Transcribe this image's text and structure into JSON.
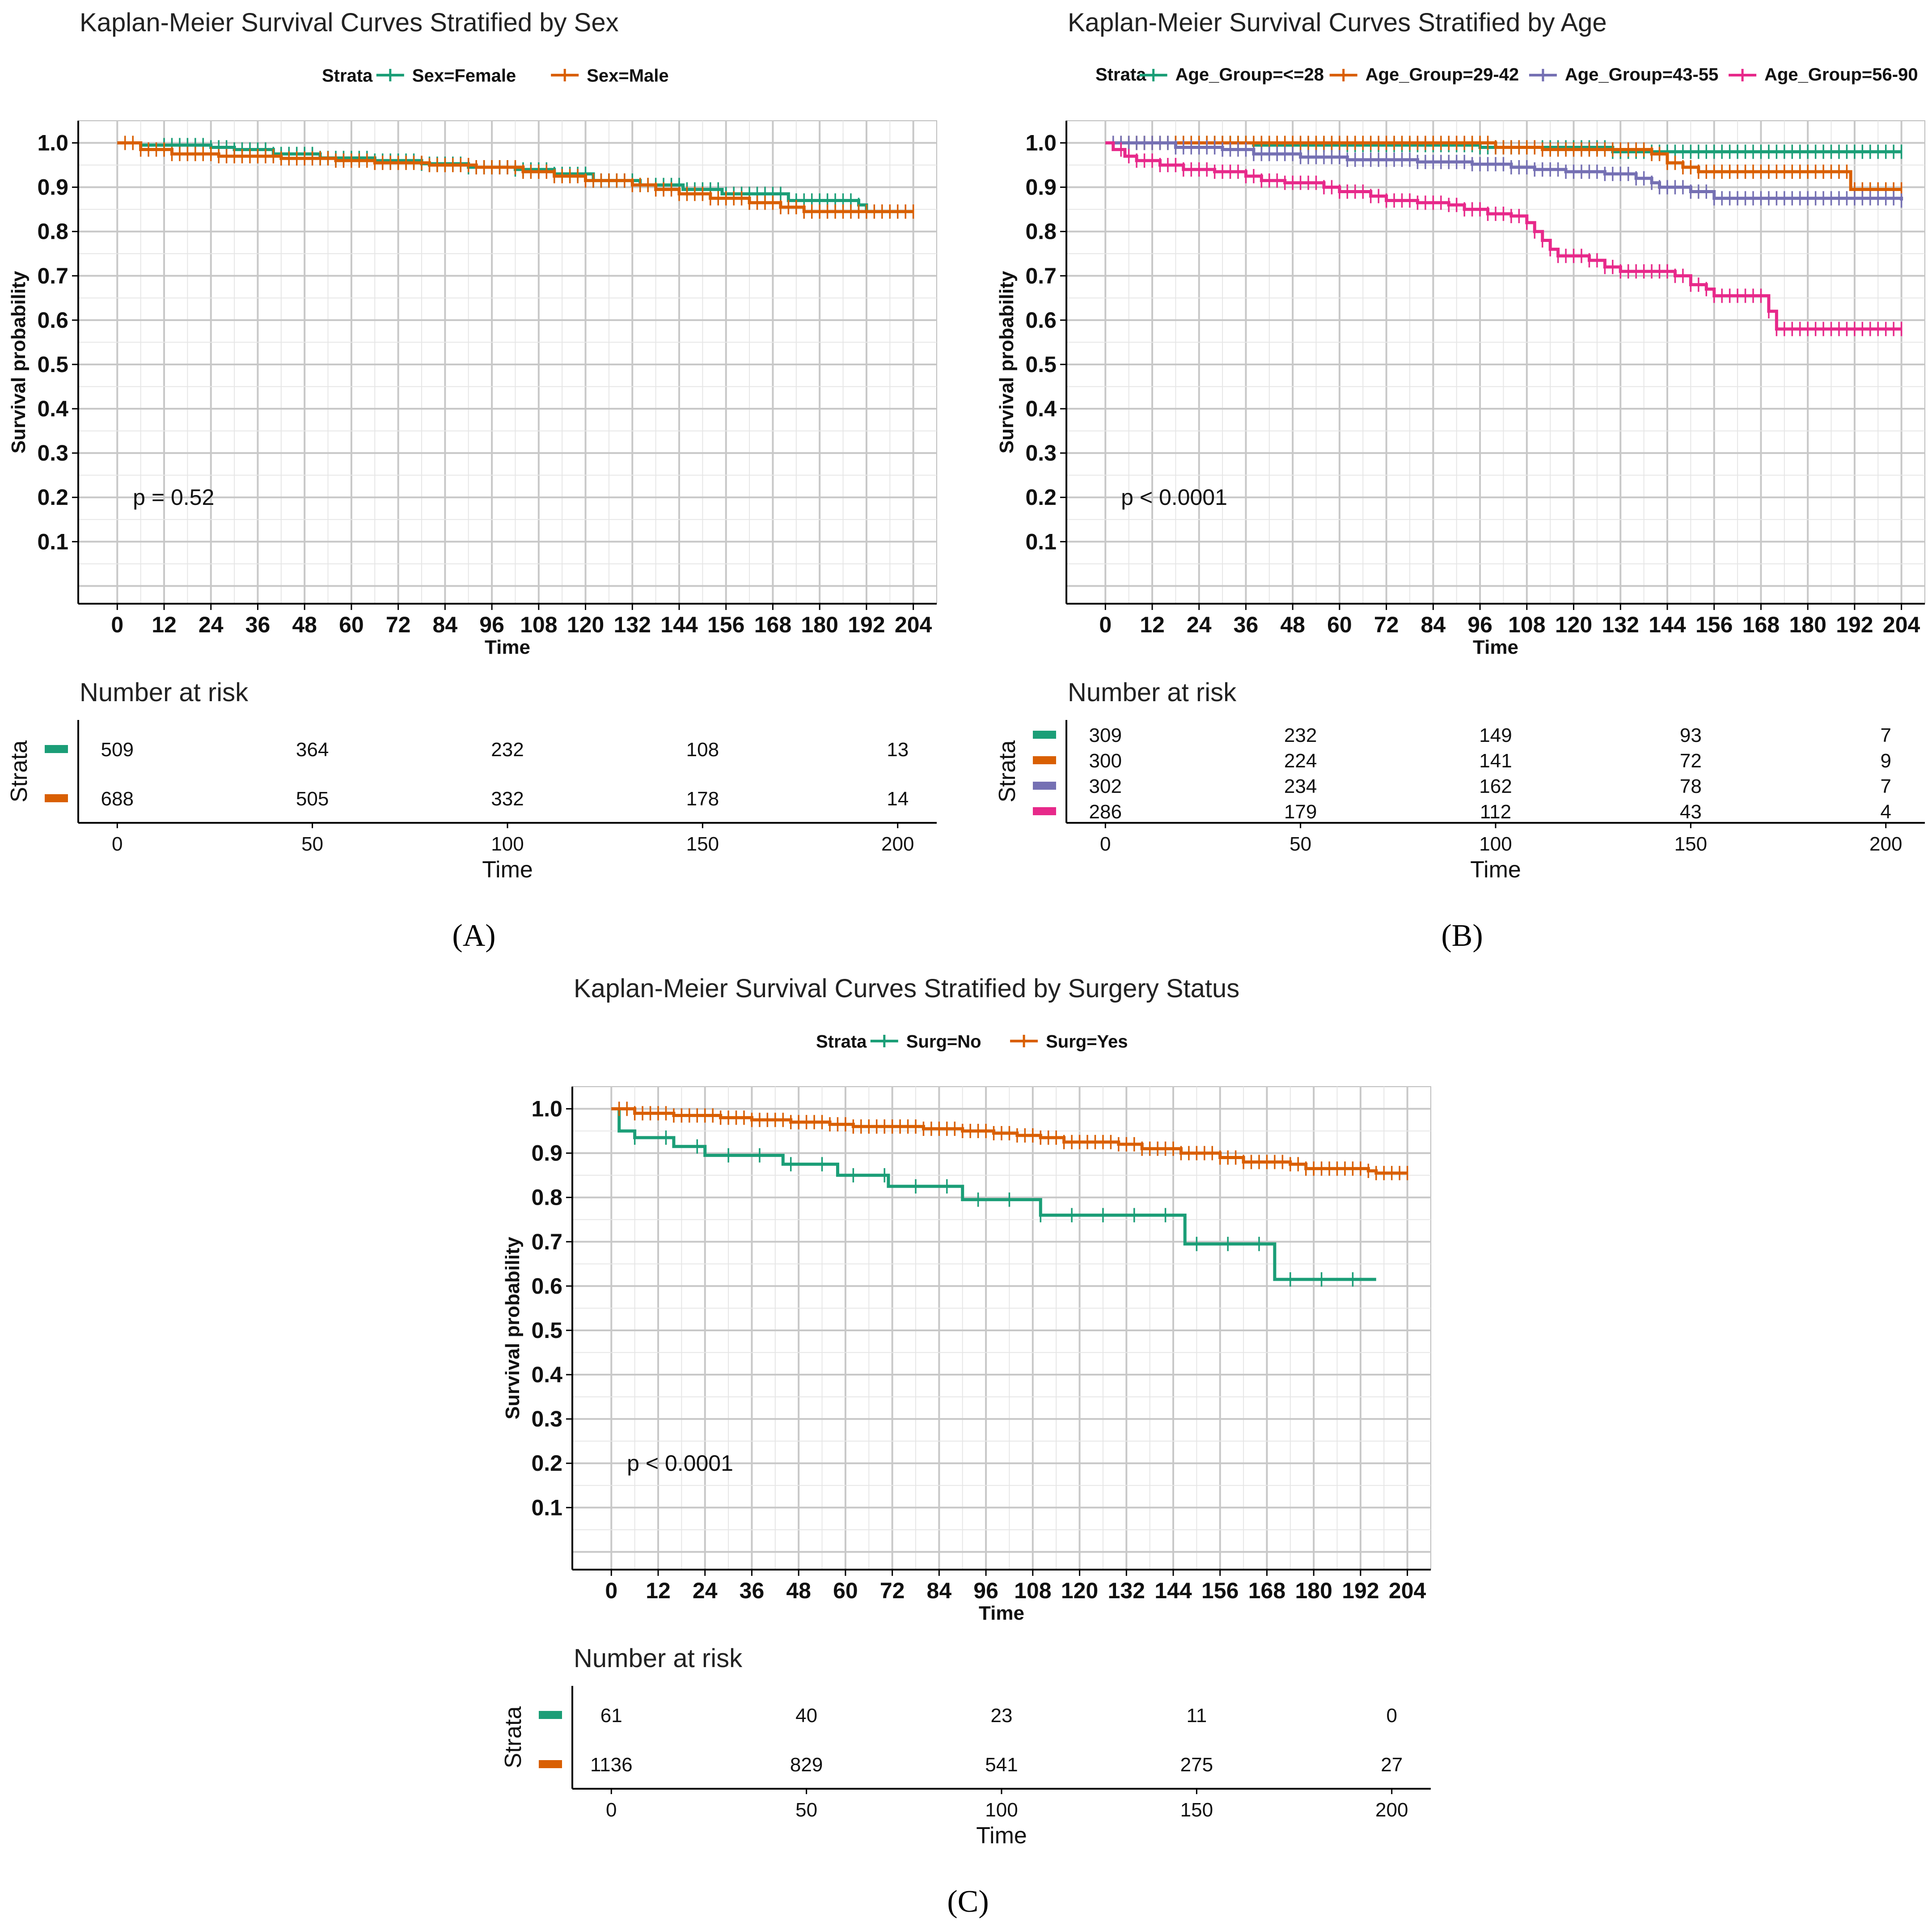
{
  "chart_data": [
    {
      "id": "A",
      "type": "line",
      "title": "Kaplan-Meier Survival Curves Stratified by Sex",
      "panel_label": "(A)",
      "legend_title": "Strata",
      "xlabel": "Time",
      "ylabel": "Survival probability",
      "xticks": [
        0,
        12,
        24,
        36,
        48,
        60,
        72,
        84,
        96,
        108,
        120,
        132,
        144,
        156,
        168,
        180,
        192,
        204
      ],
      "yticks": [
        "0.1",
        "0.2",
        "0.3",
        "0.4",
        "0.5",
        "0.6",
        "0.7",
        "0.8",
        "0.9",
        "1.0"
      ],
      "xlim": [
        -10,
        210
      ],
      "ylim": [
        -0.04,
        1.05
      ],
      "pvalue": "p = 0.52",
      "series": [
        {
          "name": "Sex=Female",
          "color": "#1b9e77",
          "points": [
            [
              0,
              1.0
            ],
            [
              6,
              0.995
            ],
            [
              24,
              0.99
            ],
            [
              30,
              0.985
            ],
            [
              40,
              0.975
            ],
            [
              52,
              0.966
            ],
            [
              66,
              0.96
            ],
            [
              78,
              0.953
            ],
            [
              90,
              0.945
            ],
            [
              102,
              0.94
            ],
            [
              112,
              0.93
            ],
            [
              122,
              0.915
            ],
            [
              134,
              0.905
            ],
            [
              145,
              0.895
            ],
            [
              155,
              0.885
            ],
            [
              172,
              0.87
            ],
            [
              190,
              0.86
            ],
            [
              192,
              0.845
            ],
            [
              204,
              0.845
            ]
          ],
          "censor_from": 12,
          "censor_to": 192
        },
        {
          "name": "Sex=Male",
          "color": "#d95f02",
          "points": [
            [
              0,
              1.0
            ],
            [
              6,
              0.985
            ],
            [
              14,
              0.975
            ],
            [
              26,
              0.97
            ],
            [
              42,
              0.965
            ],
            [
              56,
              0.96
            ],
            [
              66,
              0.955
            ],
            [
              80,
              0.95
            ],
            [
              92,
              0.945
            ],
            [
              104,
              0.935
            ],
            [
              112,
              0.925
            ],
            [
              120,
              0.915
            ],
            [
              132,
              0.905
            ],
            [
              138,
              0.895
            ],
            [
              144,
              0.885
            ],
            [
              152,
              0.875
            ],
            [
              162,
              0.865
            ],
            [
              170,
              0.855
            ],
            [
              176,
              0.845
            ],
            [
              204,
              0.845
            ]
          ],
          "censor_from": 2,
          "censor_to": 204
        }
      ],
      "risk_table": {
        "title": "Number at risk",
        "ylabel": "Strata",
        "xlabel": "Time",
        "xticks": [
          0,
          50,
          100,
          150,
          200
        ],
        "rows": [
          {
            "color": "#1b9e77",
            "values": [
              "509",
              "364",
              "232",
              "108",
              "13"
            ]
          },
          {
            "color": "#d95f02",
            "values": [
              "688",
              "505",
              "332",
              "178",
              "14"
            ]
          }
        ]
      }
    },
    {
      "id": "B",
      "type": "line",
      "title": "Kaplan-Meier Survival Curves Stratified by Age",
      "panel_label": "(B)",
      "legend_title": "Strata",
      "xlabel": "Time",
      "ylabel": "Survival probability",
      "xticks": [
        0,
        12,
        24,
        36,
        48,
        60,
        72,
        84,
        96,
        108,
        120,
        132,
        144,
        156,
        168,
        180,
        192,
        204
      ],
      "yticks": [
        "0.1",
        "0.2",
        "0.3",
        "0.4",
        "0.5",
        "0.6",
        "0.7",
        "0.8",
        "0.9",
        "1.0"
      ],
      "xlim": [
        -10,
        210
      ],
      "ylim": [
        -0.04,
        1.05
      ],
      "pvalue": "p < 0.0001",
      "series": [
        {
          "name": "Age_Group=<=28",
          "color": "#1b9e77",
          "points": [
            [
              0,
              1.0
            ],
            [
              38,
              0.995
            ],
            [
              96,
              0.99
            ],
            [
              130,
              0.98
            ],
            [
              204,
              0.98
            ]
          ],
          "censor_from": 4,
          "censor_to": 204
        },
        {
          "name": "Age_Group=29-42",
          "color": "#d95f02",
          "points": [
            [
              0,
              1.0
            ],
            [
              100,
              0.99
            ],
            [
              112,
              0.985
            ],
            [
              140,
              0.975
            ],
            [
              144,
              0.955
            ],
            [
              148,
              0.945
            ],
            [
              152,
              0.935
            ],
            [
              190,
              0.935
            ],
            [
              191,
              0.895
            ],
            [
              204,
              0.895
            ]
          ],
          "censor_from": 2,
          "censor_to": 204
        },
        {
          "name": "Age_Group=43-55",
          "color": "#7570b3",
          "points": [
            [
              0,
              1.0
            ],
            [
              18,
              0.99
            ],
            [
              30,
              0.985
            ],
            [
              38,
              0.975
            ],
            [
              50,
              0.968
            ],
            [
              62,
              0.962
            ],
            [
              80,
              0.957
            ],
            [
              94,
              0.952
            ],
            [
              104,
              0.945
            ],
            [
              110,
              0.94
            ],
            [
              118,
              0.935
            ],
            [
              128,
              0.93
            ],
            [
              136,
              0.92
            ],
            [
              140,
              0.91
            ],
            [
              142,
              0.9
            ],
            [
              150,
              0.89
            ],
            [
              156,
              0.875
            ],
            [
              204,
              0.87
            ]
          ],
          "censor_from": 2,
          "censor_to": 204
        },
        {
          "name": "Age_Group=56-90",
          "color": "#e7298a",
          "points": [
            [
              0,
              1.0
            ],
            [
              2,
              0.985
            ],
            [
              5,
              0.97
            ],
            [
              8,
              0.96
            ],
            [
              14,
              0.95
            ],
            [
              20,
              0.94
            ],
            [
              28,
              0.935
            ],
            [
              36,
              0.925
            ],
            [
              40,
              0.915
            ],
            [
              46,
              0.91
            ],
            [
              56,
              0.9
            ],
            [
              60,
              0.89
            ],
            [
              68,
              0.88
            ],
            [
              72,
              0.87
            ],
            [
              80,
              0.865
            ],
            [
              88,
              0.86
            ],
            [
              92,
              0.85
            ],
            [
              98,
              0.84
            ],
            [
              104,
              0.835
            ],
            [
              108,
              0.82
            ],
            [
              110,
              0.8
            ],
            [
              112,
              0.78
            ],
            [
              114,
              0.76
            ],
            [
              116,
              0.745
            ],
            [
              124,
              0.735
            ],
            [
              128,
              0.72
            ],
            [
              132,
              0.71
            ],
            [
              146,
              0.7
            ],
            [
              150,
              0.68
            ],
            [
              154,
              0.67
            ],
            [
              156,
              0.655
            ],
            [
              168,
              0.655
            ],
            [
              170,
              0.62
            ],
            [
              172,
              0.58
            ],
            [
              204,
              0.58
            ]
          ],
          "censor_from": 4,
          "censor_to": 204
        }
      ],
      "risk_table": {
        "title": "Number at risk",
        "ylabel": "Strata",
        "xlabel": "Time",
        "xticks": [
          0,
          50,
          100,
          150,
          200
        ],
        "rows": [
          {
            "color": "#1b9e77",
            "values": [
              "309",
              "232",
              "149",
              "93",
              "7"
            ]
          },
          {
            "color": "#d95f02",
            "values": [
              "300",
              "224",
              "141",
              "72",
              "9"
            ]
          },
          {
            "color": "#7570b3",
            "values": [
              "302",
              "234",
              "162",
              "78",
              "7"
            ]
          },
          {
            "color": "#e7298a",
            "values": [
              "286",
              "179",
              "112",
              "43",
              "4"
            ]
          }
        ]
      }
    },
    {
      "id": "C",
      "type": "line",
      "title": "Kaplan-Meier Survival Curves Stratified by Surgery Status",
      "panel_label": "(C)",
      "legend_title": "Strata",
      "xlabel": "Time",
      "ylabel": "Survival probability",
      "xticks": [
        0,
        12,
        24,
        36,
        48,
        60,
        72,
        84,
        96,
        108,
        120,
        132,
        144,
        156,
        168,
        180,
        192,
        204
      ],
      "yticks": [
        "0.1",
        "0.2",
        "0.3",
        "0.4",
        "0.5",
        "0.6",
        "0.7",
        "0.8",
        "0.9",
        "1.0"
      ],
      "xlim": [
        -10,
        210
      ],
      "ylim": [
        -0.04,
        1.05
      ],
      "pvalue": "p < 0.0001",
      "series": [
        {
          "name": "Surg=No",
          "color": "#1b9e77",
          "points": [
            [
              0,
              1.0
            ],
            [
              2,
              0.95
            ],
            [
              6,
              0.935
            ],
            [
              16,
              0.915
            ],
            [
              24,
              0.895
            ],
            [
              44,
              0.875
            ],
            [
              58,
              0.85
            ],
            [
              71,
              0.825
            ],
            [
              90,
              0.795
            ],
            [
              110,
              0.76
            ],
            [
              147,
              0.695
            ],
            [
              170,
              0.615
            ],
            [
              196,
              0.615
            ]
          ],
          "censor_from": 6,
          "censor_to": 196,
          "censor_step": 8
        },
        {
          "name": "Surg=Yes",
          "color": "#d95f02",
          "points": [
            [
              0,
              1.0
            ],
            [
              6,
              0.99
            ],
            [
              16,
              0.985
            ],
            [
              28,
              0.98
            ],
            [
              36,
              0.975
            ],
            [
              46,
              0.97
            ],
            [
              56,
              0.965
            ],
            [
              62,
              0.96
            ],
            [
              80,
              0.955
            ],
            [
              90,
              0.95
            ],
            [
              98,
              0.945
            ],
            [
              104,
              0.94
            ],
            [
              110,
              0.935
            ],
            [
              116,
              0.925
            ],
            [
              130,
              0.92
            ],
            [
              136,
              0.91
            ],
            [
              146,
              0.9
            ],
            [
              156,
              0.89
            ],
            [
              162,
              0.88
            ],
            [
              174,
              0.875
            ],
            [
              178,
              0.865
            ],
            [
              194,
              0.86
            ],
            [
              196,
              0.855
            ],
            [
              204,
              0.855
            ]
          ],
          "censor_from": 2,
          "censor_to": 204
        }
      ],
      "risk_table": {
        "title": "Number at risk",
        "ylabel": "Strata",
        "xlabel": "Time",
        "xticks": [
          0,
          50,
          100,
          150,
          200
        ],
        "rows": [
          {
            "color": "#1b9e77",
            "values": [
              "61",
              "40",
              "23",
              "11",
              "0"
            ]
          },
          {
            "color": "#d95f02",
            "values": [
              "1136",
              "829",
              "541",
              "275",
              "27"
            ]
          }
        ]
      }
    }
  ]
}
